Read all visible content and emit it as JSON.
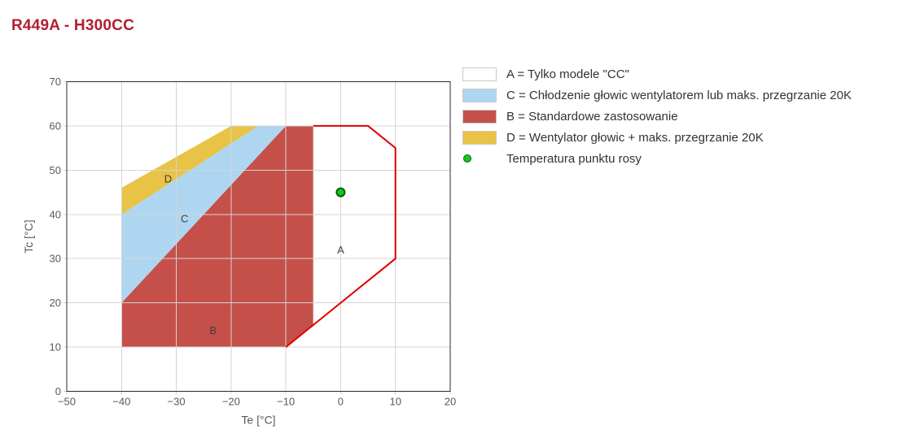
{
  "page": {
    "title": "R449A - H300CC",
    "title_color": "#b0202e",
    "background": "#ffffff"
  },
  "chart_data": {
    "type": "area",
    "title": "",
    "xlabel": "Te [°C]",
    "ylabel": "Tc [°C]",
    "xlim": [
      -50,
      20
    ],
    "ylim": [
      0,
      70
    ],
    "xticks": [
      -50,
      -40,
      -30,
      -20,
      -10,
      0,
      10,
      20
    ],
    "yticks": [
      0,
      10,
      20,
      30,
      40,
      50,
      60,
      70
    ],
    "grid": true,
    "regions": [
      {
        "id": "B",
        "label": "B",
        "label_xy": [
          -23.3,
          13.8
        ],
        "color": "#c5504a",
        "points": [
          [
            -40,
            10
          ],
          [
            -40,
            20
          ],
          [
            -10,
            60
          ],
          [
            -5,
            60
          ],
          [
            -5,
            15
          ],
          [
            -10,
            10
          ]
        ]
      },
      {
        "id": "C",
        "label": "C",
        "label_xy": [
          -28.5,
          39
        ],
        "color": "#aed6f1",
        "points": [
          [
            -40,
            20
          ],
          [
            -40,
            40
          ],
          [
            -15,
            60
          ],
          [
            -10,
            60
          ]
        ]
      },
      {
        "id": "D",
        "label": "D",
        "label_xy": [
          -31.5,
          48
        ],
        "color": "#e9c346",
        "points": [
          [
            -40,
            40
          ],
          [
            -40,
            46
          ],
          [
            -20,
            60
          ],
          [
            -15,
            60
          ]
        ]
      },
      {
        "id": "A",
        "label": "A",
        "label_xy": [
          0,
          32
        ],
        "color": "#ffffff",
        "points": [
          [
            -5,
            15
          ],
          [
            -5,
            60
          ],
          [
            5,
            60
          ],
          [
            10,
            55
          ],
          [
            10,
            30
          ]
        ]
      }
    ],
    "envelope_outline": {
      "color": "#e10000",
      "width": 2,
      "points": [
        [
          -5,
          60
        ],
        [
          5,
          60
        ],
        [
          10,
          55
        ],
        [
          10,
          30
        ],
        [
          -10,
          10
        ]
      ]
    },
    "point": {
      "x": 0,
      "y": 45,
      "fill": "#14c81e",
      "stroke": "#0a5c0a",
      "name": "Temperatura punktu rosy"
    },
    "style": {
      "grid_color": "#d4d4d4",
      "border_color": "#2b2b2b",
      "tick_text_color": "#595959",
      "axis_title_color": "#595959",
      "region_label_color": "#3f3f3f"
    }
  },
  "legend": {
    "items": [
      {
        "swatch": "#ffffff",
        "border": "#c9c9c9",
        "label": "A = Tylko modele \"CC\""
      },
      {
        "swatch": "#aed6f1",
        "border": "#c9c9c9",
        "label": "C = Chłodzenie głowic wentylatorem lub maks. przegrzanie 20K"
      },
      {
        "swatch": "#c5504a",
        "border": "#c9c9c9",
        "label": "B = Standardowe zastosowanie"
      },
      {
        "swatch": "#e9c346",
        "border": "#c9c9c9",
        "label": "D = Wentylator głowic + maks. przegrzanie 20K"
      }
    ],
    "point_item": {
      "color": "#14c81e",
      "ring": "#0a5c0a",
      "label": "Temperatura punktu rosy"
    }
  }
}
